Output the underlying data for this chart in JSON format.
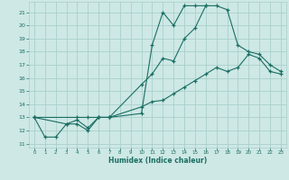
{
  "xlabel": "Humidex (Indice chaleur)",
  "bg_color": "#cde8e5",
  "line_color": "#1a6e62",
  "grid_color": "#aacfcc",
  "xlim": [
    -0.5,
    23.5
  ],
  "ylim": [
    10.7,
    21.8
  ],
  "ytick_vals": [
    11,
    12,
    13,
    14,
    15,
    16,
    17,
    18,
    19,
    20,
    21
  ],
  "xtick_vals": [
    0,
    1,
    2,
    3,
    4,
    5,
    6,
    7,
    8,
    9,
    10,
    11,
    12,
    13,
    14,
    15,
    16,
    17,
    18,
    19,
    20,
    21,
    22,
    23
  ],
  "line1_x": [
    0,
    1,
    2,
    3,
    4,
    5,
    6,
    7,
    10,
    11,
    12,
    13,
    14,
    15,
    16,
    17,
    18,
    19,
    20,
    21,
    22,
    23
  ],
  "line1_y": [
    13.0,
    11.5,
    11.5,
    12.5,
    12.5,
    12.0,
    13.0,
    13.0,
    15.5,
    16.3,
    17.5,
    17.3,
    19.0,
    19.8,
    21.5,
    21.5,
    21.2,
    18.5,
    18.0,
    17.8,
    17.0,
    16.5
  ],
  "line2_x": [
    0,
    3,
    4,
    5,
    6,
    7,
    10,
    11,
    12,
    13,
    14,
    15,
    16
  ],
  "line2_y": [
    13.0,
    12.5,
    12.8,
    12.2,
    13.0,
    13.0,
    13.3,
    18.5,
    21.0,
    20.0,
    21.5,
    21.5,
    21.5
  ],
  "line3_x": [
    0,
    4,
    5,
    6,
    7,
    10,
    11,
    12,
    13,
    14,
    15,
    16,
    17,
    18,
    19,
    20,
    21,
    22,
    23
  ],
  "line3_y": [
    13.0,
    13.0,
    13.0,
    13.0,
    13.0,
    13.8,
    14.2,
    14.3,
    14.8,
    15.3,
    15.8,
    16.3,
    16.8,
    16.5,
    16.8,
    17.8,
    17.5,
    16.5,
    16.3
  ]
}
